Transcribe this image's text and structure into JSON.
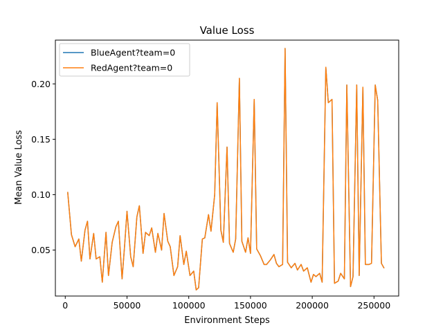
{
  "chart_data": {
    "type": "line",
    "title": "Value Loss",
    "xlabel": "Environment Steps",
    "ylabel": "Mean Value Loss",
    "xlim": [
      -8000,
      270000
    ],
    "ylim": [
      0.0085,
      0.2395
    ],
    "xticks": [
      0,
      50000,
      100000,
      150000,
      200000,
      250000
    ],
    "xtick_labels": [
      "0",
      "50000",
      "100000",
      "150000",
      "200000",
      "250000"
    ],
    "yticks": [
      0.05,
      0.1,
      0.15,
      0.2
    ],
    "ytick_labels": [
      "0.05",
      "0.10",
      "0.15",
      "0.20"
    ],
    "grid": false,
    "legend_position": "top-left",
    "series": [
      {
        "name": "BlueAgent?team=0",
        "color": "#1f77b4",
        "x": [
          2000,
          5000,
          8000,
          11000,
          13000,
          16000,
          18000,
          20000,
          23000,
          25000,
          28000,
          30000,
          33000,
          35000,
          38000,
          41000,
          43000,
          46000,
          48000,
          50000,
          53000,
          55000,
          58000,
          60000,
          63000,
          65000,
          68000,
          70000,
          73000,
          75000,
          78000,
          80000,
          83000,
          85000,
          88000,
          91000,
          93000,
          96000,
          98000,
          101000,
          104000,
          106000,
          108000,
          111000,
          113000,
          116000,
          118000,
          121000,
          123000,
          126000,
          128000,
          131000,
          133000,
          136000,
          138000,
          141000,
          143000,
          146000,
          148000,
          150000,
          153000,
          155000,
          158000,
          161000,
          163000,
          166000,
          169000,
          171000,
          173000,
          176000,
          178000,
          180000,
          183000,
          186000,
          188000,
          191000,
          193000,
          196000,
          199000,
          201000,
          203000,
          206000,
          208000,
          211000,
          213000,
          216000,
          218000,
          221000,
          223000,
          226000,
          228000,
          231000,
          233000,
          236000,
          238000,
          241000,
          243000,
          246000,
          248000,
          251000,
          253000,
          256000,
          258000
        ],
        "values": [
          0.102,
          0.064,
          0.053,
          0.06,
          0.04,
          0.068,
          0.076,
          0.042,
          0.065,
          0.042,
          0.044,
          0.021,
          0.066,
          0.027,
          0.057,
          0.071,
          0.076,
          0.024,
          0.053,
          0.085,
          0.044,
          0.035,
          0.08,
          0.09,
          0.047,
          0.066,
          0.063,
          0.07,
          0.048,
          0.065,
          0.05,
          0.083,
          0.058,
          0.053,
          0.027,
          0.035,
          0.063,
          0.037,
          0.049,
          0.027,
          0.031,
          0.014,
          0.016,
          0.06,
          0.061,
          0.082,
          0.067,
          0.1,
          0.183,
          0.068,
          0.057,
          0.143,
          0.056,
          0.048,
          0.06,
          0.205,
          0.058,
          0.048,
          0.061,
          0.047,
          0.186,
          0.051,
          0.045,
          0.037,
          0.037,
          0.041,
          0.046,
          0.038,
          0.035,
          0.037,
          0.232,
          0.039,
          0.034,
          0.038,
          0.032,
          0.037,
          0.031,
          0.034,
          0.021,
          0.028,
          0.026,
          0.029,
          0.021,
          0.215,
          0.183,
          0.186,
          0.02,
          0.022,
          0.029,
          0.024,
          0.199,
          0.017,
          0.026,
          0.199,
          0.027,
          0.197,
          0.037,
          0.037,
          0.038,
          0.199,
          0.185,
          0.038,
          0.034
        ]
      },
      {
        "name": "RedAgent?team=0",
        "color": "#ff7f0e",
        "x": [
          2000,
          5000,
          8000,
          11000,
          13000,
          16000,
          18000,
          20000,
          23000,
          25000,
          28000,
          30000,
          33000,
          35000,
          38000,
          41000,
          43000,
          46000,
          48000,
          50000,
          53000,
          55000,
          58000,
          60000,
          63000,
          65000,
          68000,
          70000,
          73000,
          75000,
          78000,
          80000,
          83000,
          85000,
          88000,
          91000,
          93000,
          96000,
          98000,
          101000,
          104000,
          106000,
          108000,
          111000,
          113000,
          116000,
          118000,
          121000,
          123000,
          126000,
          128000,
          131000,
          133000,
          136000,
          138000,
          141000,
          143000,
          146000,
          148000,
          150000,
          153000,
          155000,
          158000,
          161000,
          163000,
          166000,
          169000,
          171000,
          173000,
          176000,
          178000,
          180000,
          183000,
          186000,
          188000,
          191000,
          193000,
          196000,
          199000,
          201000,
          203000,
          206000,
          208000,
          211000,
          213000,
          216000,
          218000,
          221000,
          223000,
          226000,
          228000,
          231000,
          233000,
          236000,
          238000,
          241000,
          243000,
          246000,
          248000,
          251000,
          253000,
          256000,
          258000
        ],
        "values": [
          0.102,
          0.064,
          0.053,
          0.06,
          0.04,
          0.068,
          0.076,
          0.042,
          0.065,
          0.042,
          0.044,
          0.021,
          0.066,
          0.027,
          0.057,
          0.071,
          0.076,
          0.024,
          0.053,
          0.085,
          0.044,
          0.035,
          0.08,
          0.09,
          0.047,
          0.066,
          0.063,
          0.07,
          0.048,
          0.065,
          0.05,
          0.083,
          0.058,
          0.053,
          0.027,
          0.035,
          0.063,
          0.037,
          0.049,
          0.027,
          0.031,
          0.014,
          0.016,
          0.06,
          0.061,
          0.082,
          0.067,
          0.1,
          0.183,
          0.068,
          0.057,
          0.143,
          0.056,
          0.048,
          0.06,
          0.205,
          0.058,
          0.048,
          0.061,
          0.047,
          0.186,
          0.051,
          0.045,
          0.037,
          0.037,
          0.041,
          0.046,
          0.038,
          0.035,
          0.037,
          0.232,
          0.039,
          0.034,
          0.038,
          0.032,
          0.037,
          0.031,
          0.034,
          0.021,
          0.028,
          0.026,
          0.029,
          0.021,
          0.215,
          0.183,
          0.186,
          0.02,
          0.022,
          0.029,
          0.024,
          0.199,
          0.017,
          0.026,
          0.199,
          0.027,
          0.197,
          0.037,
          0.037,
          0.038,
          0.199,
          0.185,
          0.038,
          0.034
        ]
      }
    ]
  }
}
